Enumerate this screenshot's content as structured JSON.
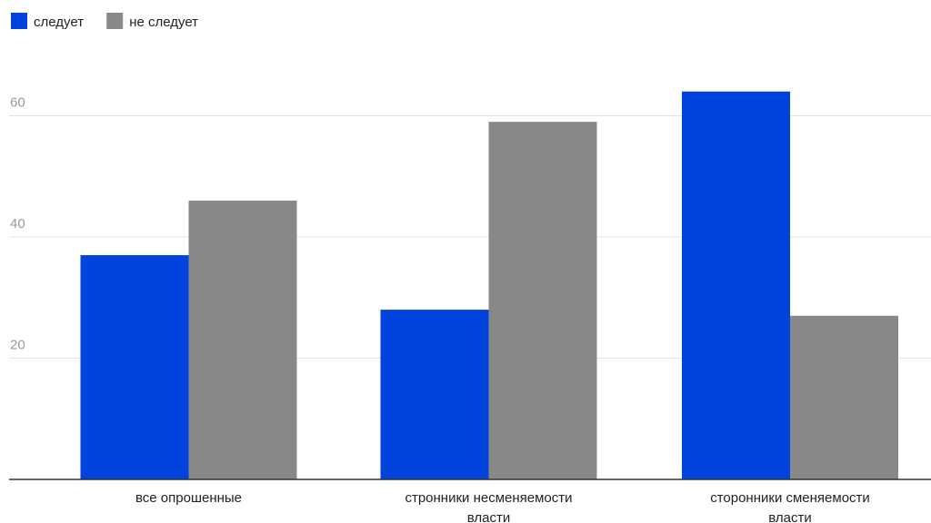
{
  "chart_data": {
    "type": "bar",
    "categories": [
      [
        "все опрошенные"
      ],
      [
        "стронники несменяемости",
        "власти"
      ],
      [
        "сторонники сменяемости",
        "власти"
      ]
    ],
    "series": [
      {
        "name": "следует",
        "color": "#0044dd",
        "values": [
          37,
          28,
          64
        ]
      },
      {
        "name": "не следует",
        "color": "#888888",
        "values": [
          46,
          59,
          27
        ]
      }
    ],
    "yticks": [
      20,
      40,
      60
    ],
    "ylim": [
      0,
      68
    ],
    "grid": true,
    "legend_position": "top-left",
    "title": "",
    "xlabel": "",
    "ylabel": ""
  }
}
